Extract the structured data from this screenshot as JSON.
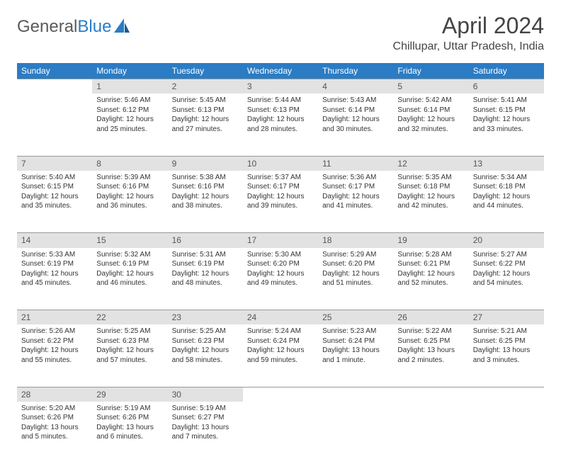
{
  "logo": {
    "text1": "General",
    "text2": "Blue"
  },
  "title": "April 2024",
  "location": "Chillupar, Uttar Pradesh, India",
  "colors": {
    "header_bg": "#2b7cc4",
    "header_text": "#ffffff",
    "daynum_bg": "#e2e2e2",
    "body_text": "#333333",
    "logo_gray": "#5a5a5a",
    "logo_blue": "#2b7cc4"
  },
  "weekdays": [
    "Sunday",
    "Monday",
    "Tuesday",
    "Wednesday",
    "Thursday",
    "Friday",
    "Saturday"
  ],
  "weeks": [
    {
      "nums": [
        "",
        "1",
        "2",
        "3",
        "4",
        "5",
        "6"
      ],
      "cells": [
        {
          "sunrise": "",
          "sunset": "",
          "daylight1": "",
          "daylight2": ""
        },
        {
          "sunrise": "Sunrise: 5:46 AM",
          "sunset": "Sunset: 6:12 PM",
          "daylight1": "Daylight: 12 hours",
          "daylight2": "and 25 minutes."
        },
        {
          "sunrise": "Sunrise: 5:45 AM",
          "sunset": "Sunset: 6:13 PM",
          "daylight1": "Daylight: 12 hours",
          "daylight2": "and 27 minutes."
        },
        {
          "sunrise": "Sunrise: 5:44 AM",
          "sunset": "Sunset: 6:13 PM",
          "daylight1": "Daylight: 12 hours",
          "daylight2": "and 28 minutes."
        },
        {
          "sunrise": "Sunrise: 5:43 AM",
          "sunset": "Sunset: 6:14 PM",
          "daylight1": "Daylight: 12 hours",
          "daylight2": "and 30 minutes."
        },
        {
          "sunrise": "Sunrise: 5:42 AM",
          "sunset": "Sunset: 6:14 PM",
          "daylight1": "Daylight: 12 hours",
          "daylight2": "and 32 minutes."
        },
        {
          "sunrise": "Sunrise: 5:41 AM",
          "sunset": "Sunset: 6:15 PM",
          "daylight1": "Daylight: 12 hours",
          "daylight2": "and 33 minutes."
        }
      ]
    },
    {
      "nums": [
        "7",
        "8",
        "9",
        "10",
        "11",
        "12",
        "13"
      ],
      "cells": [
        {
          "sunrise": "Sunrise: 5:40 AM",
          "sunset": "Sunset: 6:15 PM",
          "daylight1": "Daylight: 12 hours",
          "daylight2": "and 35 minutes."
        },
        {
          "sunrise": "Sunrise: 5:39 AM",
          "sunset": "Sunset: 6:16 PM",
          "daylight1": "Daylight: 12 hours",
          "daylight2": "and 36 minutes."
        },
        {
          "sunrise": "Sunrise: 5:38 AM",
          "sunset": "Sunset: 6:16 PM",
          "daylight1": "Daylight: 12 hours",
          "daylight2": "and 38 minutes."
        },
        {
          "sunrise": "Sunrise: 5:37 AM",
          "sunset": "Sunset: 6:17 PM",
          "daylight1": "Daylight: 12 hours",
          "daylight2": "and 39 minutes."
        },
        {
          "sunrise": "Sunrise: 5:36 AM",
          "sunset": "Sunset: 6:17 PM",
          "daylight1": "Daylight: 12 hours",
          "daylight2": "and 41 minutes."
        },
        {
          "sunrise": "Sunrise: 5:35 AM",
          "sunset": "Sunset: 6:18 PM",
          "daylight1": "Daylight: 12 hours",
          "daylight2": "and 42 minutes."
        },
        {
          "sunrise": "Sunrise: 5:34 AM",
          "sunset": "Sunset: 6:18 PM",
          "daylight1": "Daylight: 12 hours",
          "daylight2": "and 44 minutes."
        }
      ]
    },
    {
      "nums": [
        "14",
        "15",
        "16",
        "17",
        "18",
        "19",
        "20"
      ],
      "cells": [
        {
          "sunrise": "Sunrise: 5:33 AM",
          "sunset": "Sunset: 6:19 PM",
          "daylight1": "Daylight: 12 hours",
          "daylight2": "and 45 minutes."
        },
        {
          "sunrise": "Sunrise: 5:32 AM",
          "sunset": "Sunset: 6:19 PM",
          "daylight1": "Daylight: 12 hours",
          "daylight2": "and 46 minutes."
        },
        {
          "sunrise": "Sunrise: 5:31 AM",
          "sunset": "Sunset: 6:19 PM",
          "daylight1": "Daylight: 12 hours",
          "daylight2": "and 48 minutes."
        },
        {
          "sunrise": "Sunrise: 5:30 AM",
          "sunset": "Sunset: 6:20 PM",
          "daylight1": "Daylight: 12 hours",
          "daylight2": "and 49 minutes."
        },
        {
          "sunrise": "Sunrise: 5:29 AM",
          "sunset": "Sunset: 6:20 PM",
          "daylight1": "Daylight: 12 hours",
          "daylight2": "and 51 minutes."
        },
        {
          "sunrise": "Sunrise: 5:28 AM",
          "sunset": "Sunset: 6:21 PM",
          "daylight1": "Daylight: 12 hours",
          "daylight2": "and 52 minutes."
        },
        {
          "sunrise": "Sunrise: 5:27 AM",
          "sunset": "Sunset: 6:22 PM",
          "daylight1": "Daylight: 12 hours",
          "daylight2": "and 54 minutes."
        }
      ]
    },
    {
      "nums": [
        "21",
        "22",
        "23",
        "24",
        "25",
        "26",
        "27"
      ],
      "cells": [
        {
          "sunrise": "Sunrise: 5:26 AM",
          "sunset": "Sunset: 6:22 PM",
          "daylight1": "Daylight: 12 hours",
          "daylight2": "and 55 minutes."
        },
        {
          "sunrise": "Sunrise: 5:25 AM",
          "sunset": "Sunset: 6:23 PM",
          "daylight1": "Daylight: 12 hours",
          "daylight2": "and 57 minutes."
        },
        {
          "sunrise": "Sunrise: 5:25 AM",
          "sunset": "Sunset: 6:23 PM",
          "daylight1": "Daylight: 12 hours",
          "daylight2": "and 58 minutes."
        },
        {
          "sunrise": "Sunrise: 5:24 AM",
          "sunset": "Sunset: 6:24 PM",
          "daylight1": "Daylight: 12 hours",
          "daylight2": "and 59 minutes."
        },
        {
          "sunrise": "Sunrise: 5:23 AM",
          "sunset": "Sunset: 6:24 PM",
          "daylight1": "Daylight: 13 hours",
          "daylight2": "and 1 minute."
        },
        {
          "sunrise": "Sunrise: 5:22 AM",
          "sunset": "Sunset: 6:25 PM",
          "daylight1": "Daylight: 13 hours",
          "daylight2": "and 2 minutes."
        },
        {
          "sunrise": "Sunrise: 5:21 AM",
          "sunset": "Sunset: 6:25 PM",
          "daylight1": "Daylight: 13 hours",
          "daylight2": "and 3 minutes."
        }
      ]
    },
    {
      "nums": [
        "28",
        "29",
        "30",
        "",
        "",
        "",
        ""
      ],
      "cells": [
        {
          "sunrise": "Sunrise: 5:20 AM",
          "sunset": "Sunset: 6:26 PM",
          "daylight1": "Daylight: 13 hours",
          "daylight2": "and 5 minutes."
        },
        {
          "sunrise": "Sunrise: 5:19 AM",
          "sunset": "Sunset: 6:26 PM",
          "daylight1": "Daylight: 13 hours",
          "daylight2": "and 6 minutes."
        },
        {
          "sunrise": "Sunrise: 5:19 AM",
          "sunset": "Sunset: 6:27 PM",
          "daylight1": "Daylight: 13 hours",
          "daylight2": "and 7 minutes."
        },
        {
          "sunrise": "",
          "sunset": "",
          "daylight1": "",
          "daylight2": ""
        },
        {
          "sunrise": "",
          "sunset": "",
          "daylight1": "",
          "daylight2": ""
        },
        {
          "sunrise": "",
          "sunset": "",
          "daylight1": "",
          "daylight2": ""
        },
        {
          "sunrise": "",
          "sunset": "",
          "daylight1": "",
          "daylight2": ""
        }
      ]
    }
  ]
}
